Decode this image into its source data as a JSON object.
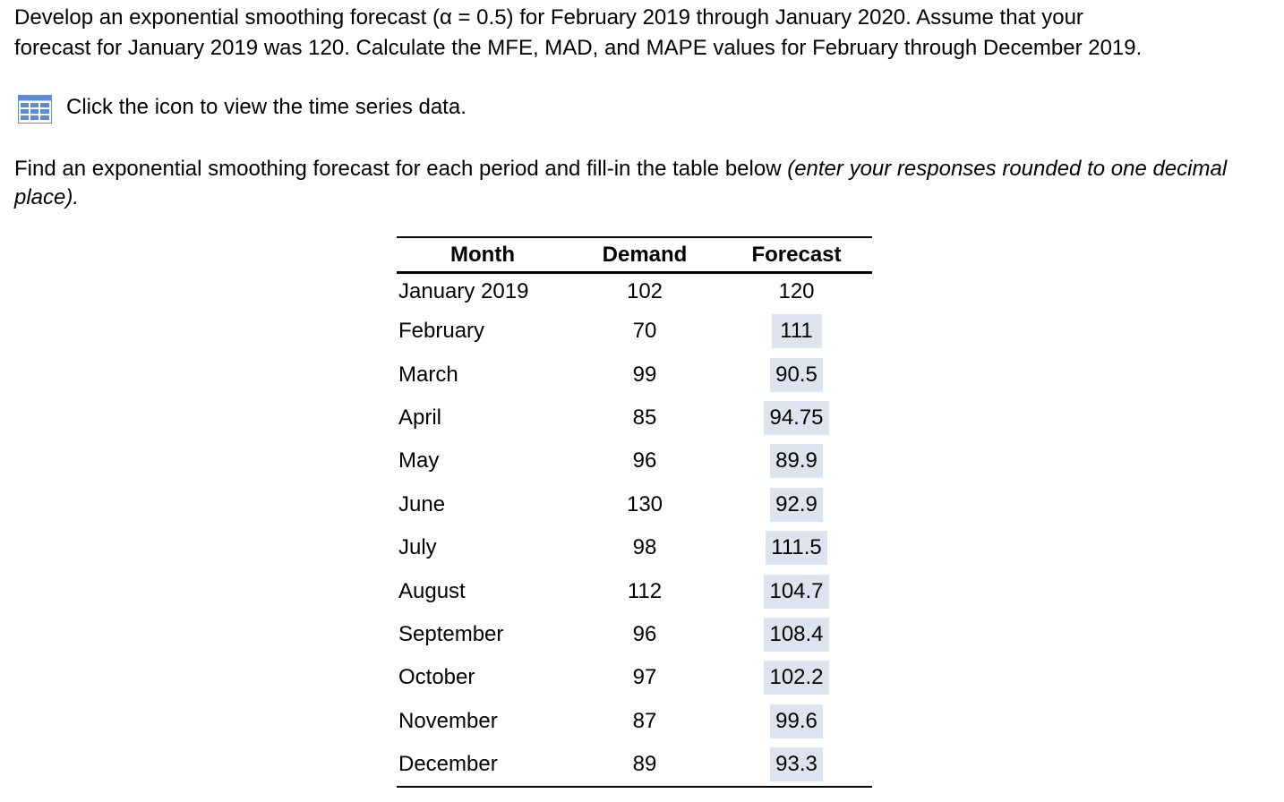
{
  "question": {
    "lines": [
      "Develop an exponential smoothing forecast (α = 0.5) for February 2019 through January 2020. Assume that your",
      "forecast  for January 2019 was 120. Calculate the MFE, MAD, and MAPE values for February through December 2019."
    ]
  },
  "link": "Click the icon to view the time series data.",
  "instruction": {
    "text": "Find an exponential smoothing forecast for each period and fill-in the table below ",
    "italic": "(enter your responses rounded to one decimal place)."
  },
  "table": {
    "header": [
      "Month",
      "Demand",
      "Forecast"
    ],
    "rows": [
      [
        "January 2019",
        "102",
        "120"
      ],
      [
        "February",
        "70",
        "111"
      ],
      [
        "March",
        "99",
        "90.5"
      ],
      [
        "April",
        "85",
        "94.75"
      ],
      [
        "May",
        "96",
        "89.9"
      ],
      [
        "June",
        "130",
        "92.9"
      ],
      [
        "July",
        "98",
        "111.5"
      ],
      [
        "August",
        "112",
        "104.7"
      ],
      [
        "September",
        "96",
        "108.4"
      ],
      [
        "October",
        "97",
        "102.2"
      ],
      [
        "November",
        "87",
        "99.6"
      ],
      [
        "December",
        "89",
        "93.3"
      ]
    ]
  }
}
